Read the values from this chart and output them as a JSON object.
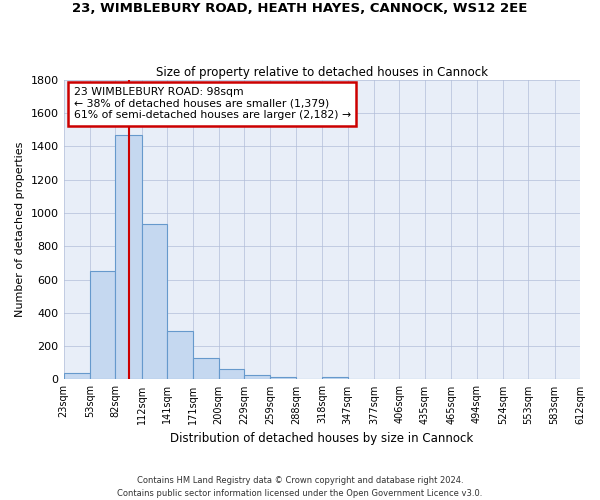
{
  "title": "23, WIMBLEBURY ROAD, HEATH HAYES, CANNOCK, WS12 2EE",
  "subtitle": "Size of property relative to detached houses in Cannock",
  "xlabel": "Distribution of detached houses by size in Cannock",
  "ylabel": "Number of detached properties",
  "bar_color": "#c5d8f0",
  "bar_edge_color": "#6699cc",
  "background_color": "#e8eef8",
  "grid_color": "#b0bcd8",
  "bin_edges": [
    23,
    53,
    82,
    112,
    141,
    171,
    200,
    229,
    259,
    288,
    318,
    347,
    377,
    406,
    435,
    465,
    494,
    524,
    553,
    583,
    612
  ],
  "bar_heights": [
    40,
    650,
    1470,
    935,
    290,
    130,
    65,
    25,
    15,
    5,
    15,
    0,
    0,
    0,
    0,
    0,
    0,
    0,
    0,
    0
  ],
  "property_size": 98,
  "red_line_color": "#cc0000",
  "annotation_line1": "23 WIMBLEBURY ROAD: 98sqm",
  "annotation_line2": "← 38% of detached houses are smaller (1,379)",
  "annotation_line3": "61% of semi-detached houses are larger (2,182) →",
  "annotation_box_color": "#ffffff",
  "annotation_box_edge": "#cc0000",
  "ylim": [
    0,
    1800
  ],
  "yticks": [
    0,
    200,
    400,
    600,
    800,
    1000,
    1200,
    1400,
    1600,
    1800
  ],
  "tick_labels": [
    "23sqm",
    "53sqm",
    "82sqm",
    "112sqm",
    "141sqm",
    "171sqm",
    "200sqm",
    "229sqm",
    "259sqm",
    "288sqm",
    "318sqm",
    "347sqm",
    "377sqm",
    "406sqm",
    "435sqm",
    "465sqm",
    "494sqm",
    "524sqm",
    "553sqm",
    "583sqm",
    "612sqm"
  ],
  "footer_line1": "Contains HM Land Registry data © Crown copyright and database right 2024.",
  "footer_line2": "Contains public sector information licensed under the Open Government Licence v3.0."
}
